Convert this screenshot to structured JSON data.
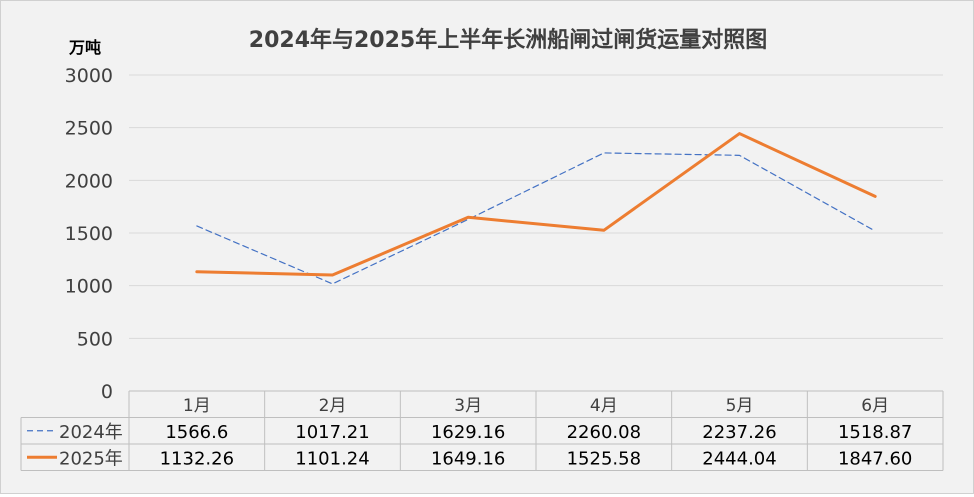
{
  "chart_data": {
    "type": "line",
    "title": "2024年与2025年上半年长洲船闸过闸货运量对照图",
    "ylabel": "万吨",
    "xlabel": "",
    "categories": [
      "1月",
      "2月",
      "3月",
      "4月",
      "5月",
      "6月"
    ],
    "ylim": [
      0,
      3000
    ],
    "yticks": [
      0,
      500,
      1000,
      1500,
      2000,
      2500,
      3000
    ],
    "grid": true,
    "legend": "data-table-left",
    "series": [
      {
        "name": "2024年",
        "values": [
          1566.6,
          1017.21,
          1629.16,
          2260.08,
          2237.26,
          1518.87
        ],
        "labels": [
          "1566.6",
          "1017.21",
          "1629.16",
          "2260.08",
          "2237.26",
          "1518.87"
        ],
        "color": "#4472c4",
        "style": "dashed"
      },
      {
        "name": "2025年",
        "values": [
          1132.26,
          1101.24,
          1649.16,
          1525.58,
          2444.04,
          1847.6
        ],
        "labels": [
          "1132.26",
          "1101.24",
          "1649.16",
          "1525.58",
          "2444.04",
          "1847.60"
        ],
        "color": "#ed7d31",
        "style": "solid"
      }
    ]
  }
}
